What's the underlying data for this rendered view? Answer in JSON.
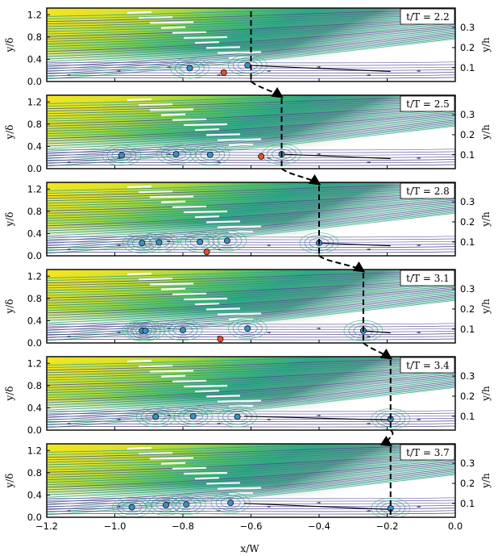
{
  "figure": {
    "x_axis": {
      "label": "x/W",
      "ticks": [
        "−1.2",
        "−1.0",
        "−0.8",
        "−0.6",
        "−0.4",
        "−0.2",
        "0.0"
      ],
      "range": [
        -1.2,
        0.0
      ]
    },
    "y_axis_left": {
      "label": "y/δ",
      "ticks": [
        "0.0",
        "0.4",
        "0.8",
        "1.2"
      ],
      "range": [
        0.0,
        1.32
      ]
    },
    "y_axis_right": {
      "label": "y/h",
      "ticks": [
        "0.1",
        "0.2",
        "0.3"
      ]
    },
    "colors": {
      "free_stream": "#f2e51d",
      "shear": "#35b779",
      "wall": "#3b2a73",
      "vortex_positive": "#3b8fc4",
      "vortex_negative": "#e0502a"
    },
    "panels": [
      {
        "time_label": "t/T = 2.2",
        "wave_x": -0.6,
        "vortices_blue": [
          [
            -0.78,
            0.24
          ],
          [
            -0.61,
            0.29
          ]
        ],
        "vortices_red": [
          [
            -0.68,
            0.16
          ]
        ],
        "line_to": [
          -0.19,
          0.18
        ]
      },
      {
        "time_label": "t/T = 2.5",
        "wave_x": -0.51,
        "vortices_blue": [
          [
            -0.98,
            0.24
          ],
          [
            -0.82,
            0.26
          ],
          [
            -0.72,
            0.25
          ],
          [
            -0.51,
            0.26
          ]
        ],
        "vortices_red": [
          [
            -0.57,
            0.22
          ]
        ],
        "line_to": [
          -0.19,
          0.18
        ]
      },
      {
        "time_label": "t/T = 2.8",
        "wave_x": -0.4,
        "vortices_blue": [
          [
            -0.92,
            0.23
          ],
          [
            -0.87,
            0.24
          ],
          [
            -0.75,
            0.25
          ],
          [
            -0.67,
            0.27
          ],
          [
            -0.4,
            0.23
          ]
        ],
        "vortices_red": [
          [
            -0.73,
            0.07
          ]
        ],
        "line_to": [
          -0.19,
          0.18
        ]
      },
      {
        "time_label": "t/T = 3.1",
        "wave_x": -0.27,
        "vortices_blue": [
          [
            -0.92,
            0.22
          ],
          [
            -0.91,
            0.22
          ],
          [
            -0.8,
            0.23
          ],
          [
            -0.61,
            0.26
          ],
          [
            -0.27,
            0.22
          ]
        ],
        "vortices_red": [
          [
            -0.69,
            0.07
          ]
        ],
        "line_to": [
          -0.19,
          0.18
        ]
      },
      {
        "time_label": "t/T = 3.4",
        "wave_x": -0.19,
        "vortices_blue": [
          [
            -0.88,
            0.24
          ],
          [
            -0.77,
            0.25
          ],
          [
            -0.64,
            0.24
          ],
          [
            -0.19,
            0.2
          ]
        ],
        "vortices_red": [],
        "line_to": [
          -0.19,
          0.18
        ]
      },
      {
        "time_label": "t/T = 3.7",
        "wave_x": -0.19,
        "vortices_blue": [
          [
            -0.95,
            0.18
          ],
          [
            -0.85,
            0.22
          ],
          [
            -0.79,
            0.23
          ],
          [
            -0.66,
            0.26
          ],
          [
            -0.19,
            0.16
          ]
        ],
        "vortices_red": [],
        "line_to": [
          -0.19,
          0.14
        ]
      }
    ]
  }
}
